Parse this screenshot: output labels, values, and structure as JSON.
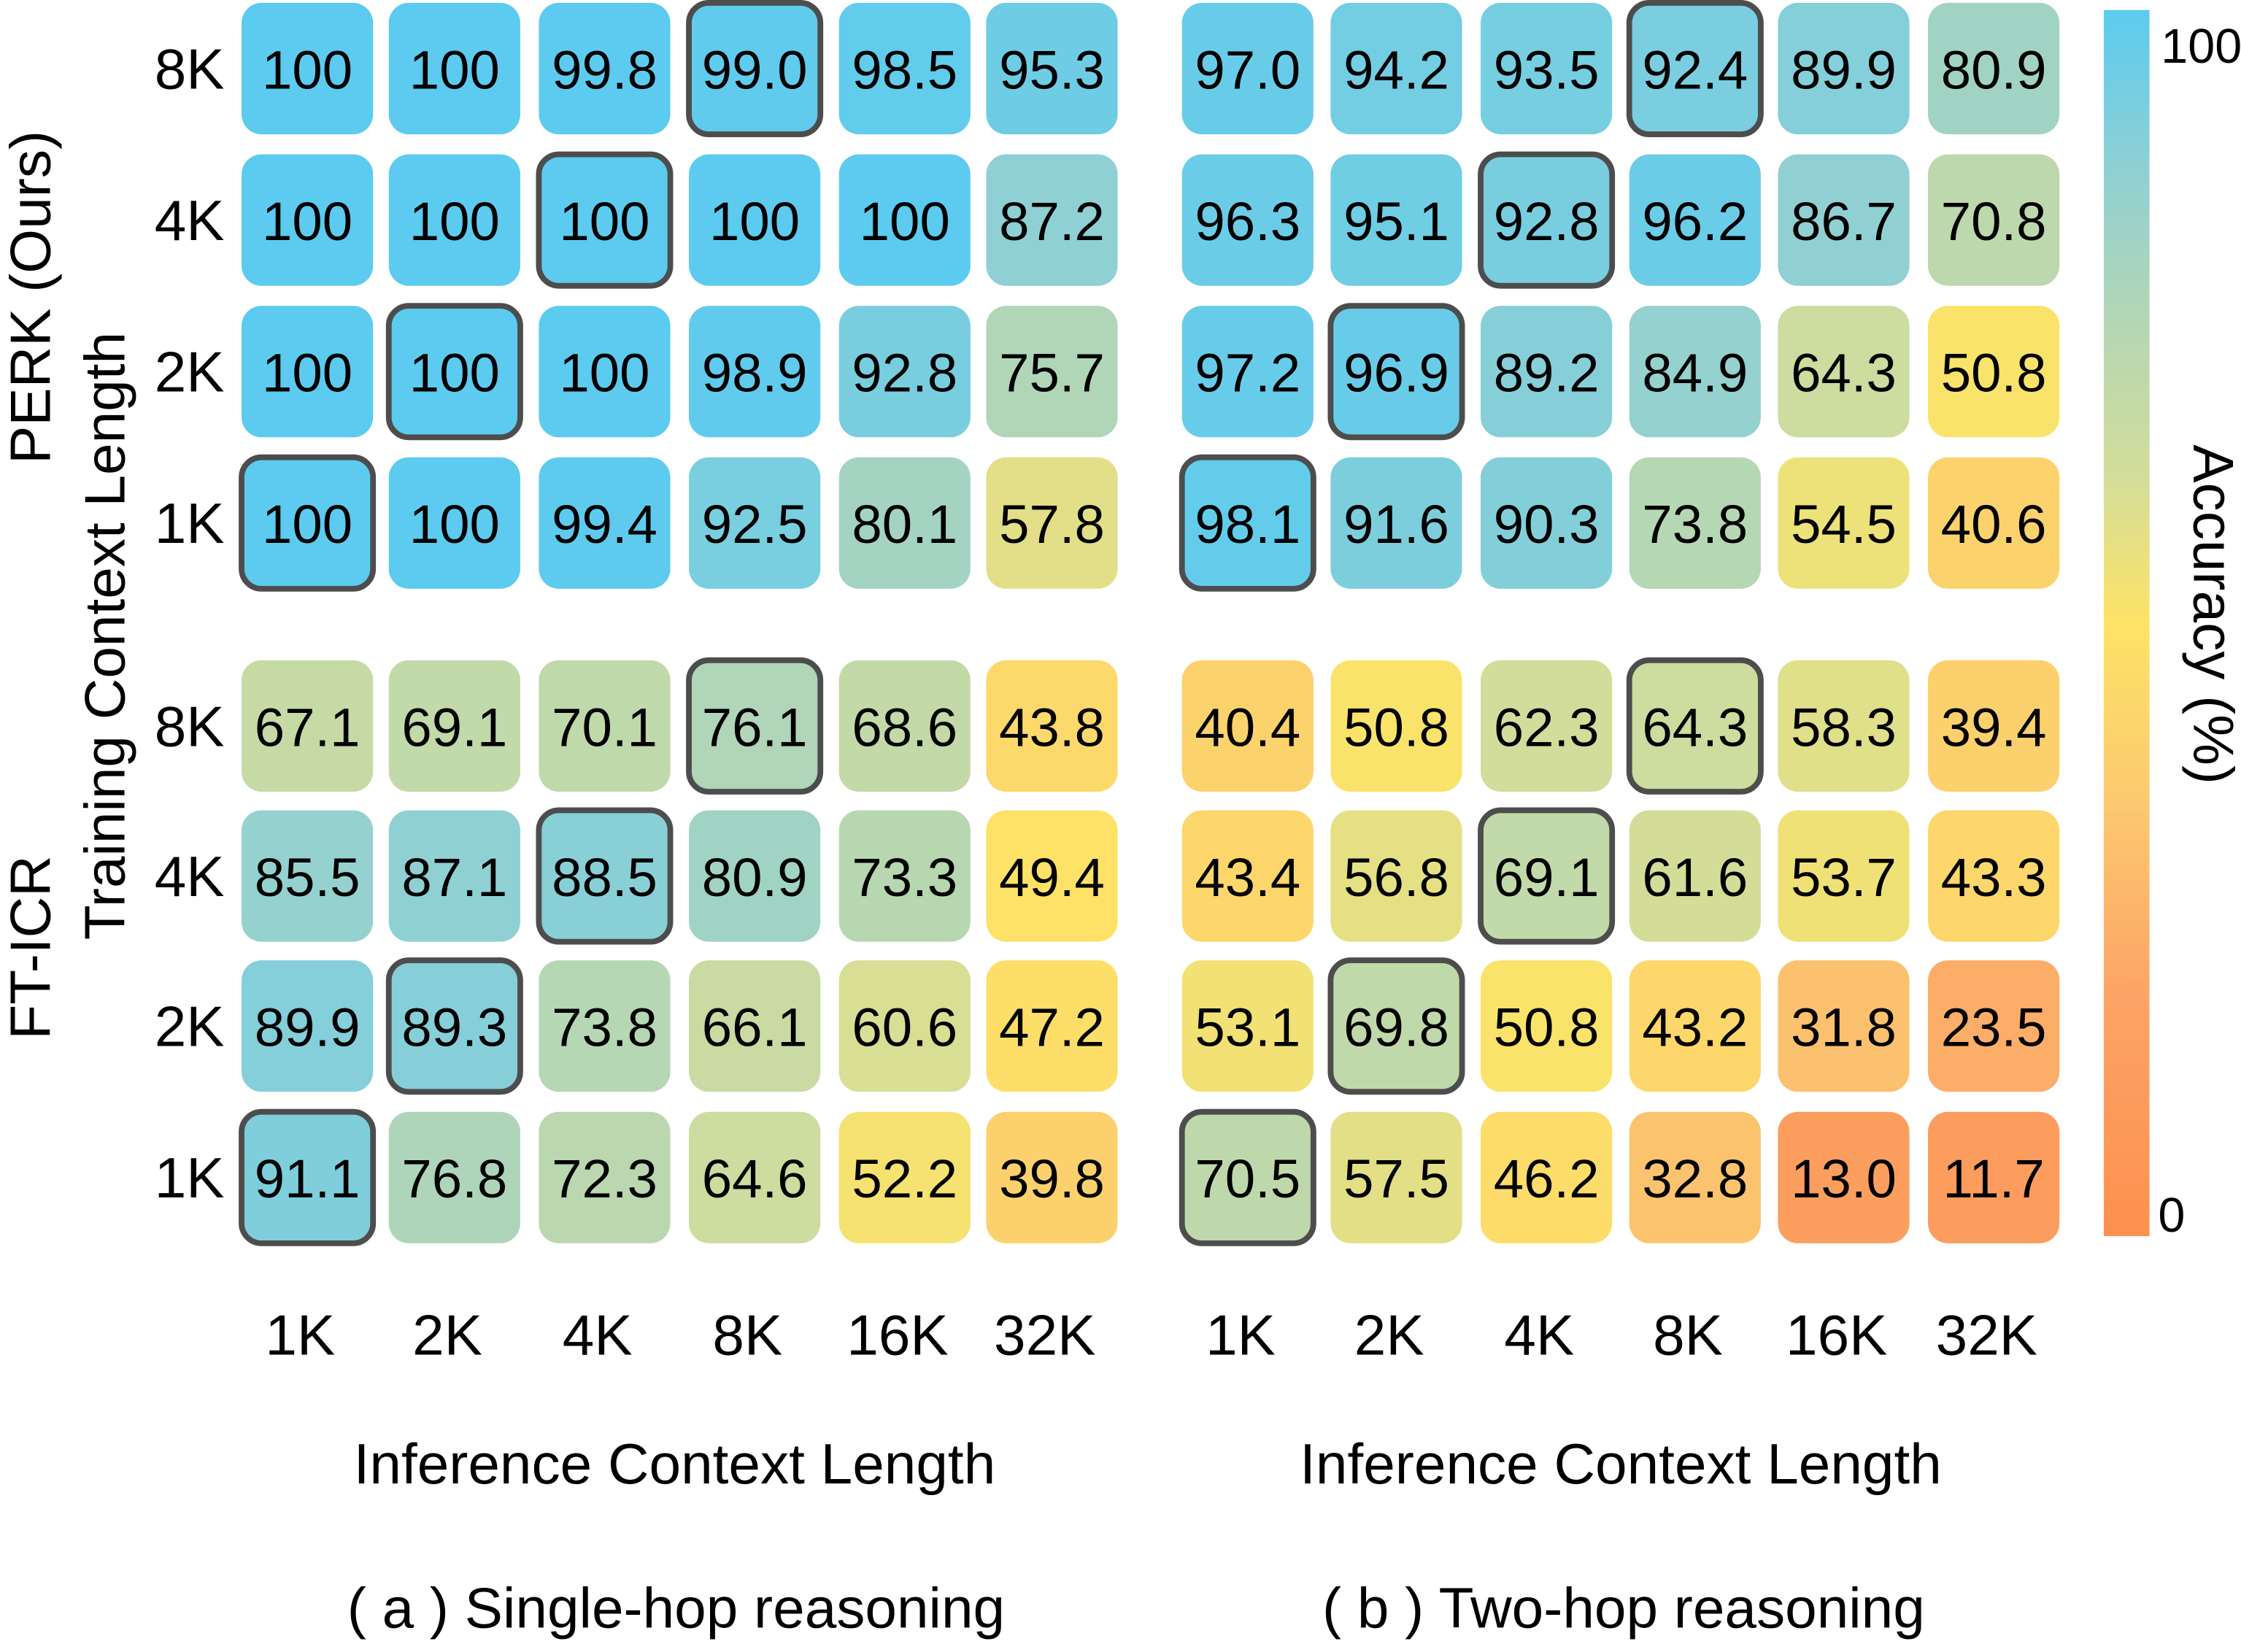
{
  "chart_data": [
    {
      "type": "heatmap",
      "caption": "( a )  Single-hop reasoning",
      "xlabel": "Inference Context Length",
      "ylabel": "Training Context Length",
      "x_categories": [
        "1K",
        "2K",
        "4K",
        "8K",
        "16K",
        "32K"
      ],
      "groups": [
        {
          "name": "PERK (Ours)",
          "rows": [
            {
              "train": "8K",
              "values": [
                100,
                100,
                99.8,
                99.0,
                98.5,
                95.3
              ],
              "highlight": "8K"
            },
            {
              "train": "4K",
              "values": [
                100,
                100,
                100,
                100,
                100,
                87.2
              ],
              "highlight": "4K"
            },
            {
              "train": "2K",
              "values": [
                100,
                100,
                100,
                98.9,
                92.8,
                75.7
              ],
              "highlight": "2K"
            },
            {
              "train": "1K",
              "values": [
                100,
                100,
                99.4,
                92.5,
                80.1,
                57.8
              ],
              "highlight": "1K"
            }
          ]
        },
        {
          "name": "FT-ICR",
          "rows": [
            {
              "train": "8K",
              "values": [
                67.1,
                69.1,
                70.1,
                76.1,
                68.6,
                43.8
              ],
              "highlight": "8K"
            },
            {
              "train": "4K",
              "values": [
                85.5,
                87.1,
                88.5,
                80.9,
                73.3,
                49.4
              ],
              "highlight": "4K"
            },
            {
              "train": "2K",
              "values": [
                89.9,
                89.3,
                73.8,
                66.1,
                60.6,
                47.2
              ],
              "highlight": "2K"
            },
            {
              "train": "1K",
              "values": [
                91.1,
                76.8,
                72.3,
                64.6,
                52.2,
                39.8
              ],
              "highlight": "1K"
            }
          ]
        }
      ]
    },
    {
      "type": "heatmap",
      "caption": "( b )  Two-hop reasoning",
      "xlabel": "Inference Context Length",
      "x_categories": [
        "1K",
        "2K",
        "4K",
        "8K",
        "16K",
        "32K"
      ],
      "groups": [
        {
          "name": "PERK (Ours)",
          "rows": [
            {
              "train": "8K",
              "values": [
                97.0,
                94.2,
                93.5,
                92.4,
                89.9,
                80.9
              ],
              "highlight": "8K"
            },
            {
              "train": "4K",
              "values": [
                96.3,
                95.1,
                92.8,
                96.2,
                86.7,
                70.8
              ],
              "highlight": "4K"
            },
            {
              "train": "2K",
              "values": [
                97.2,
                96.9,
                89.2,
                84.9,
                64.3,
                50.8
              ],
              "highlight": "2K"
            },
            {
              "train": "1K",
              "values": [
                98.1,
                91.6,
                90.3,
                73.8,
                54.5,
                40.6
              ],
              "highlight": "1K"
            }
          ]
        },
        {
          "name": "FT-ICR",
          "rows": [
            {
              "train": "8K",
              "values": [
                40.4,
                50.8,
                62.3,
                64.3,
                58.3,
                39.4
              ],
              "highlight": "8K"
            },
            {
              "train": "4K",
              "values": [
                43.4,
                56.8,
                69.1,
                61.6,
                53.7,
                43.3
              ],
              "highlight": "4K"
            },
            {
              "train": "2K",
              "values": [
                53.1,
                69.8,
                50.8,
                43.2,
                31.8,
                23.5
              ],
              "highlight": "2K"
            },
            {
              "train": "1K",
              "values": [
                70.5,
                57.5,
                46.2,
                32.8,
                13.0,
                11.7
              ],
              "highlight": "1K"
            }
          ]
        }
      ]
    }
  ],
  "colorbar": {
    "label": "Accuracy (%)",
    "min_label": "0",
    "max_label": "100",
    "range": [
      0,
      100
    ],
    "colors": [
      "#fd9050",
      "#fca566",
      "#fcc870",
      "#fde367",
      "#d3dd9a",
      "#b3d6b5",
      "#8fd0d3",
      "#5ccbef"
    ]
  },
  "highlight_border_color": "#4d4d4d"
}
